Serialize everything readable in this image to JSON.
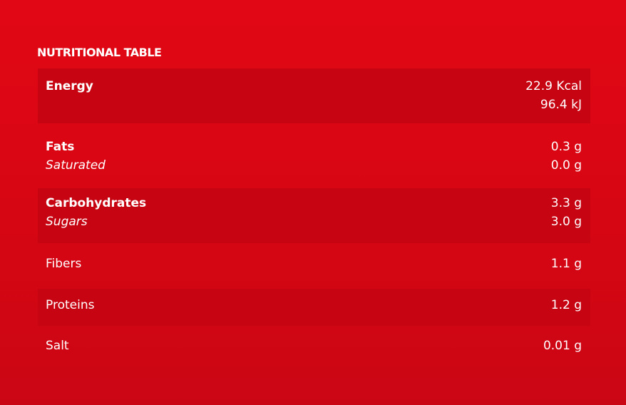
{
  "title": "NUTRITIONAL TABLE",
  "rows": [
    {
      "label": "Energy",
      "values": [
        "22.9 Kcal",
        "96.4 kJ"
      ]
    },
    {
      "label": "Fats",
      "sub": "Saturated",
      "values": [
        "0.3 g",
        "0.0 g"
      ]
    },
    {
      "label": "Carbohydrates",
      "sub": "Sugars",
      "values": [
        "3.3 g",
        "3.0 g"
      ]
    },
    {
      "label": "Fibers",
      "values": [
        "1.1 g"
      ]
    },
    {
      "label": "Proteins",
      "values": [
        "1.2 g"
      ]
    },
    {
      "label": "Salt",
      "values": [
        "0.01 g"
      ]
    }
  ],
  "colors": {
    "background": "#dc0613",
    "row_dark": "#c70512",
    "text": "#ffffff"
  }
}
